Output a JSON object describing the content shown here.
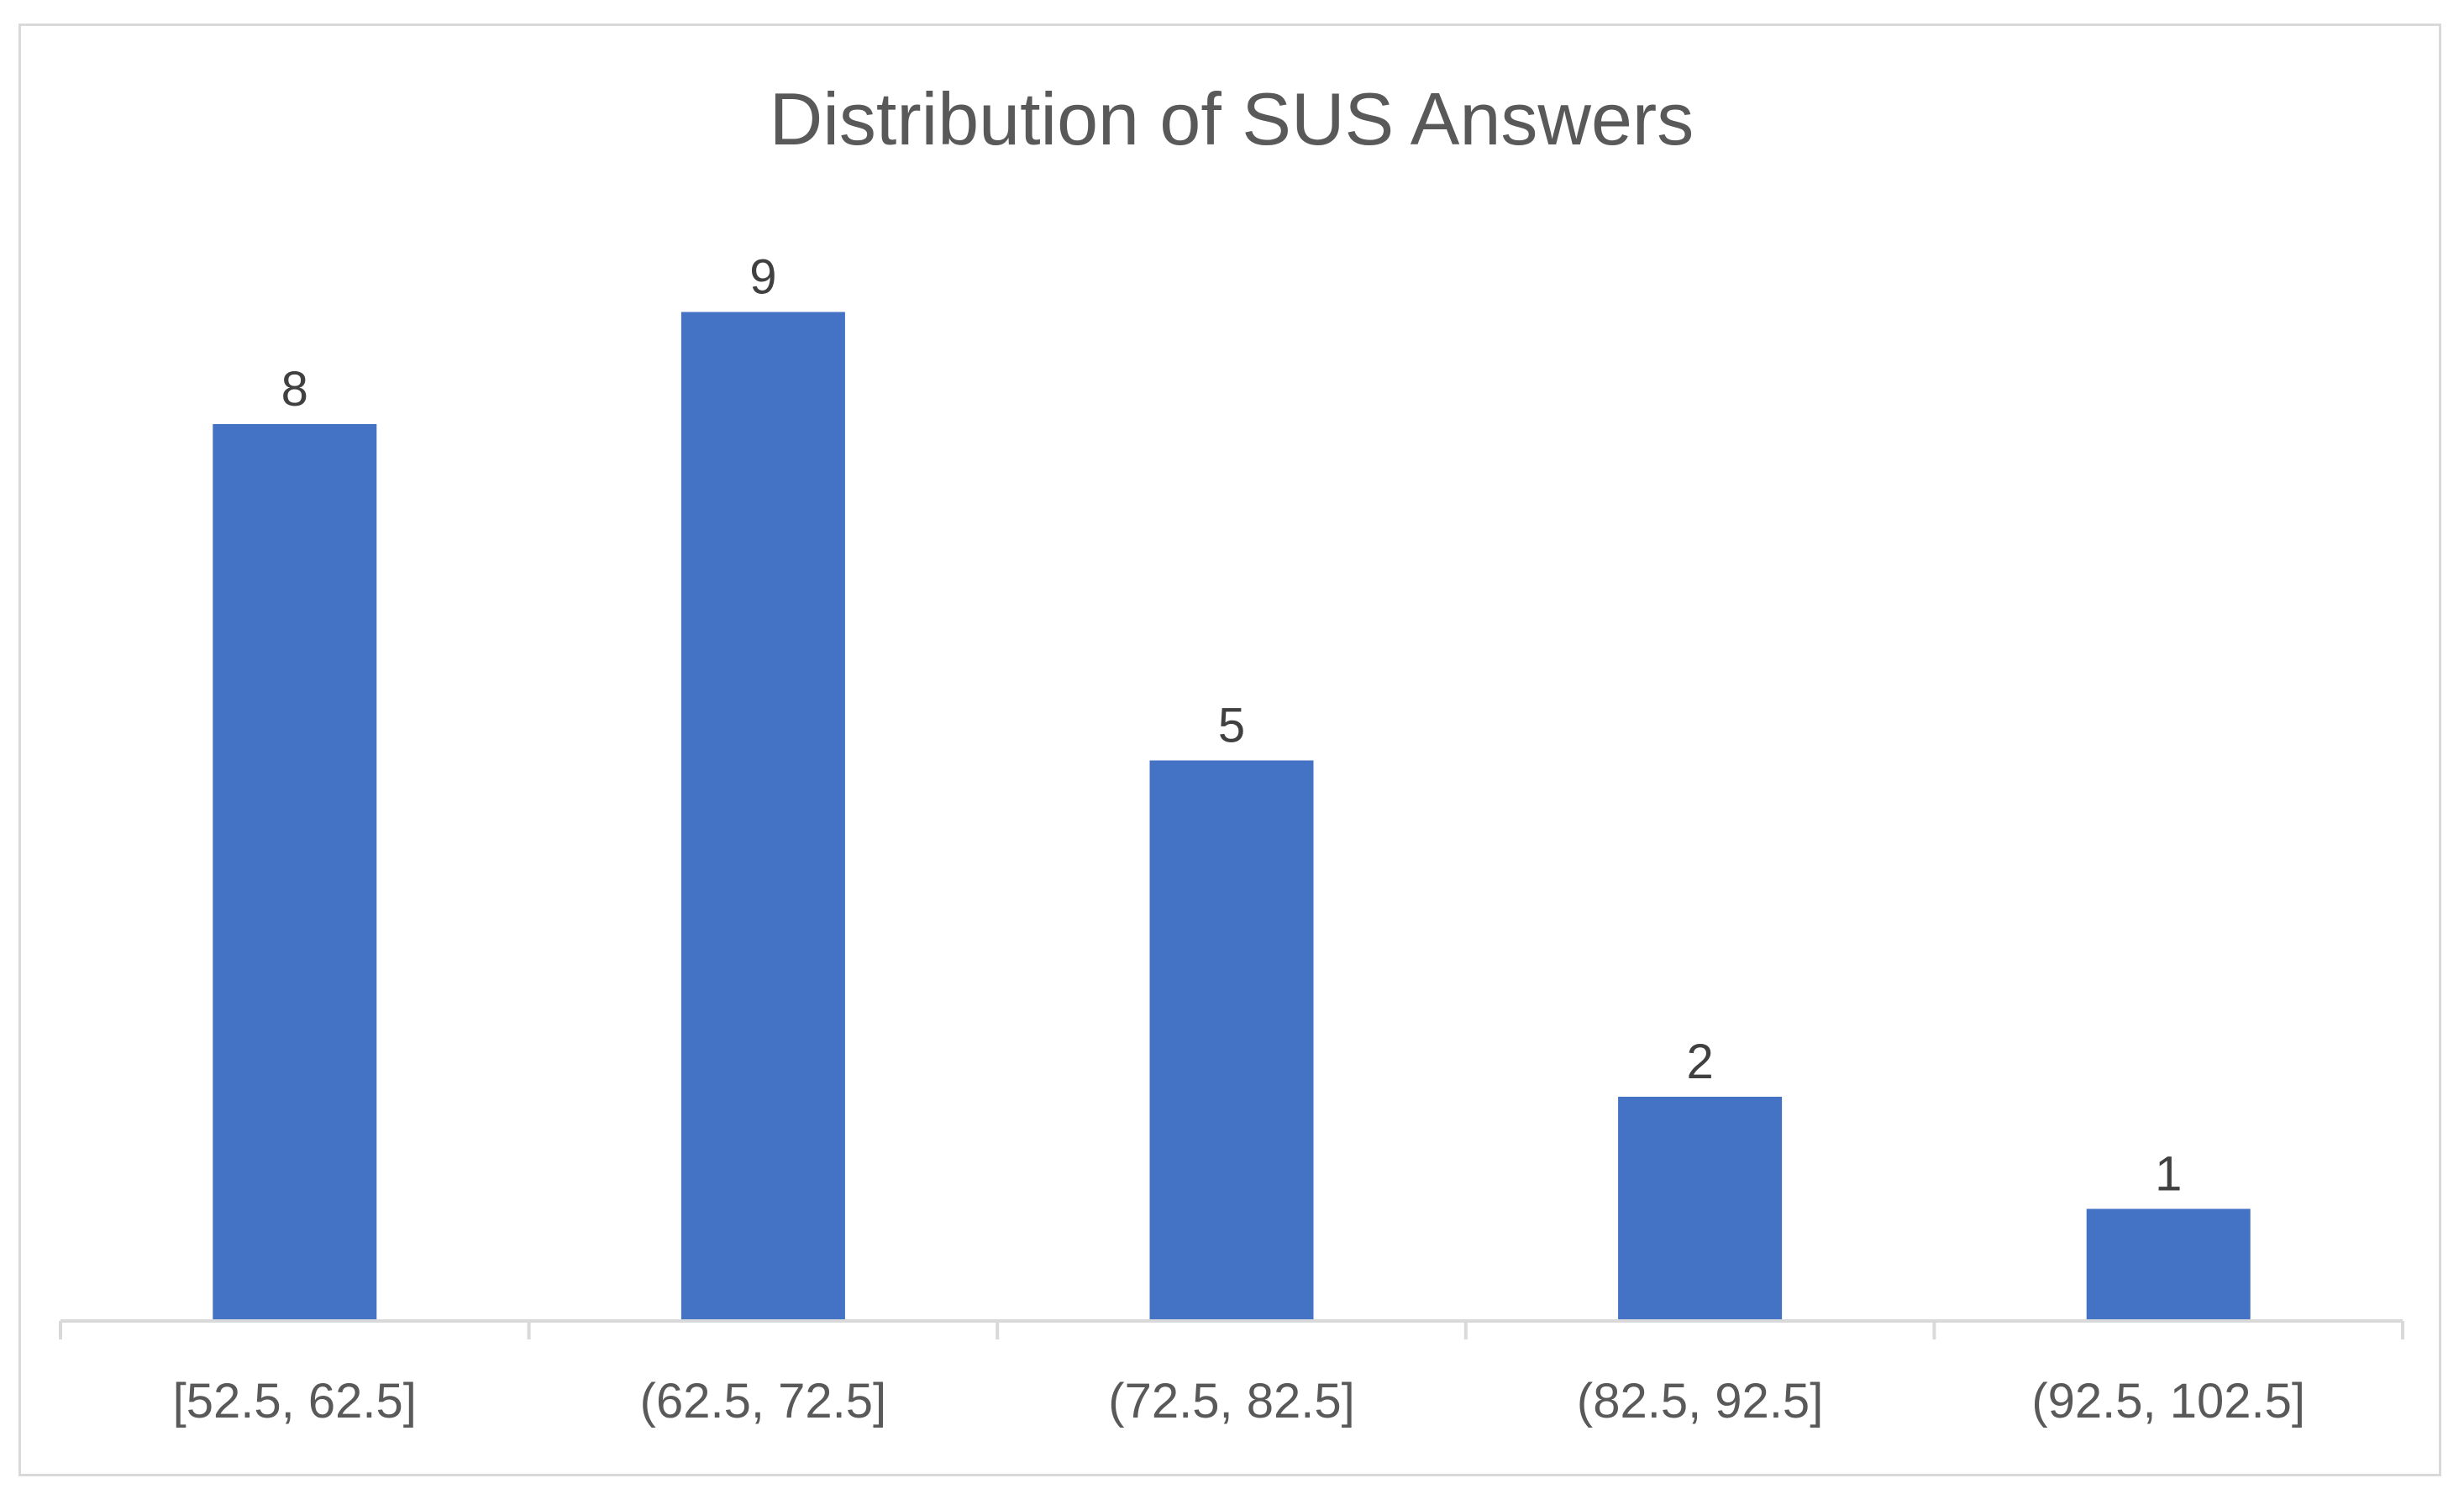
{
  "chart_data": {
    "type": "bar",
    "title": "Distribution of SUS Answers",
    "xlabel": "",
    "ylabel": "",
    "categories": [
      "[52.5, 62.5]",
      "(62.5, 72.5]",
      "(72.5, 82.5]",
      "(82.5, 92.5]",
      "(92.5, 102.5]"
    ],
    "values": [
      8,
      9,
      5,
      2,
      1
    ],
    "data_labels": [
      "8",
      "9",
      "5",
      "2",
      "1"
    ],
    "ylim": [
      0,
      10
    ],
    "grid": false,
    "legend": "none",
    "colors": {
      "bar": "#4472C4",
      "axis": "#d9d9d9",
      "title": "#595959",
      "labels": "#404040"
    }
  }
}
